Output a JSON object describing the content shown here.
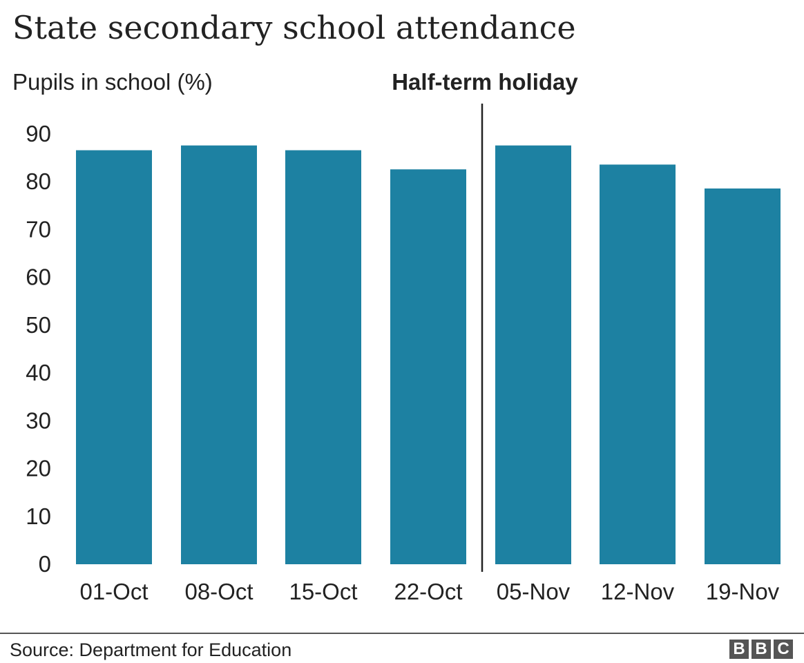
{
  "chart_data": {
    "type": "bar",
    "title": "State secondary school attendance",
    "ylabel": "Pupils in school (%)",
    "xlabel": "",
    "categories": [
      "01-Oct",
      "08-Oct",
      "15-Oct",
      "22-Oct",
      "05-Nov",
      "12-Nov",
      "19-Nov"
    ],
    "values": [
      86.6,
      87.6,
      86.6,
      82.6,
      87.6,
      83.6,
      78.6
    ],
    "ylim": [
      0,
      90
    ],
    "yticks": [
      "0",
      "10",
      "20",
      "30",
      "40",
      "50",
      "60",
      "70",
      "80",
      "90"
    ],
    "annotation": {
      "label": "Half-term holiday",
      "between": [
        "22-Oct",
        "05-Nov"
      ]
    },
    "grid": false,
    "legend": "none",
    "bar_color": "#1d81a2"
  },
  "footer": {
    "source": "Source: Department for Education",
    "logo_letters": [
      "B",
      "B",
      "C"
    ]
  },
  "colors": {
    "text": "#222222",
    "divider": "#222222",
    "logo": "#555555"
  }
}
